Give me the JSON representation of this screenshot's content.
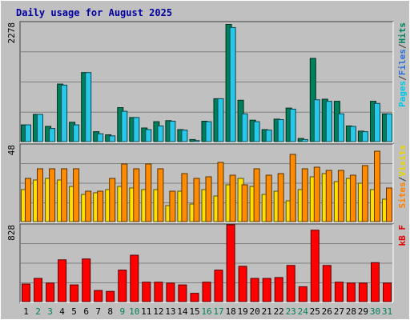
{
  "chart_data": [
    {
      "type": "bar",
      "title": "Daily usage for August 2025",
      "y_tick_label": "2278",
      "ylim": [
        0,
        2278
      ],
      "categories": [
        "1",
        "2",
        "3",
        "4",
        "5",
        "6",
        "7",
        "8",
        "9",
        "10",
        "11",
        "12",
        "13",
        "14",
        "15",
        "16",
        "17",
        "18",
        "19",
        "20",
        "21",
        "22",
        "23",
        "24",
        "25",
        "26",
        "27",
        "28",
        "29",
        "30",
        "31"
      ],
      "weekend_days": [
        "2",
        "3",
        "9",
        "10",
        "16",
        "17",
        "23",
        "24",
        "30",
        "31"
      ],
      "legend": [
        {
          "text": "Pages",
          "color": "#00c8e6"
        },
        {
          "text": "/",
          "color": "#333333"
        },
        {
          "text": "Files",
          "color": "#2a6fd6"
        },
        {
          "text": "/",
          "color": "#333333"
        },
        {
          "text": "Hits",
          "color": "#008060"
        }
      ],
      "series": [
        {
          "name": "Hits",
          "color": "#00805a",
          "values": [
            320,
            520,
            290,
            1100,
            370,
            1320,
            190,
            130,
            650,
            460,
            260,
            380,
            400,
            230,
            40,
            390,
            820,
            2240,
            790,
            410,
            230,
            430,
            640,
            60,
            1590,
            810,
            770,
            300,
            200,
            770,
            530
          ]
        },
        {
          "name": "Files",
          "color": "#28c8e8",
          "values": [
            320,
            520,
            250,
            1080,
            320,
            1320,
            150,
            110,
            580,
            460,
            230,
            300,
            390,
            220,
            20,
            380,
            820,
            2180,
            530,
            380,
            220,
            420,
            620,
            40,
            800,
            770,
            530,
            290,
            190,
            730,
            530
          ]
        }
      ]
    },
    {
      "type": "bar",
      "y_tick_label": "48",
      "ylim": [
        0,
        48
      ],
      "categories": [
        "1",
        "2",
        "3",
        "4",
        "5",
        "6",
        "7",
        "8",
        "9",
        "10",
        "11",
        "12",
        "13",
        "14",
        "15",
        "16",
        "17",
        "18",
        "19",
        "20",
        "21",
        "22",
        "23",
        "24",
        "25",
        "26",
        "27",
        "28",
        "29",
        "30",
        "31"
      ],
      "legend": [
        {
          "text": "Sites",
          "color": "#ff8000"
        },
        {
          "text": "/",
          "color": "#333333"
        },
        {
          "text": "Visits",
          "color": "#e8d800"
        }
      ],
      "series": [
        {
          "name": "Sites",
          "color": "#ffe000",
          "values": [
            20,
            26,
            27,
            26,
            22,
            17,
            18,
            20,
            22,
            21,
            20,
            20,
            10,
            19,
            11,
            20,
            16,
            23,
            27,
            22,
            17,
            19,
            13,
            20,
            28,
            30,
            25,
            27,
            24,
            20,
            14
          ]
        },
        {
          "name": "Visits",
          "color": "#ff8c00",
          "values": [
            27,
            33,
            33,
            33,
            33,
            19,
            19,
            27,
            36,
            33,
            36,
            33,
            19,
            30,
            27,
            28,
            37,
            29,
            23,
            33,
            29,
            30,
            42,
            33,
            34,
            32,
            32,
            29,
            35,
            44,
            21
          ]
        }
      ]
    },
    {
      "type": "bar",
      "y_tick_label": "828",
      "ylim": [
        0,
        828
      ],
      "categories": [
        "1",
        "2",
        "3",
        "4",
        "5",
        "6",
        "7",
        "8",
        "9",
        "10",
        "11",
        "12",
        "13",
        "14",
        "15",
        "16",
        "17",
        "18",
        "19",
        "20",
        "21",
        "22",
        "23",
        "24",
        "25",
        "26",
        "27",
        "28",
        "29",
        "30",
        "31"
      ],
      "legend": [
        {
          "text": "kB F",
          "color": "#e00000"
        }
      ],
      "series": [
        {
          "name": "kB F",
          "color": "#ff0000",
          "values": [
            190,
            250,
            200,
            450,
            180,
            460,
            120,
            110,
            340,
            500,
            210,
            210,
            200,
            180,
            90,
            210,
            340,
            828,
            380,
            250,
            250,
            260,
            390,
            160,
            770,
            390,
            210,
            200,
            200,
            420,
            200
          ]
        }
      ]
    }
  ]
}
